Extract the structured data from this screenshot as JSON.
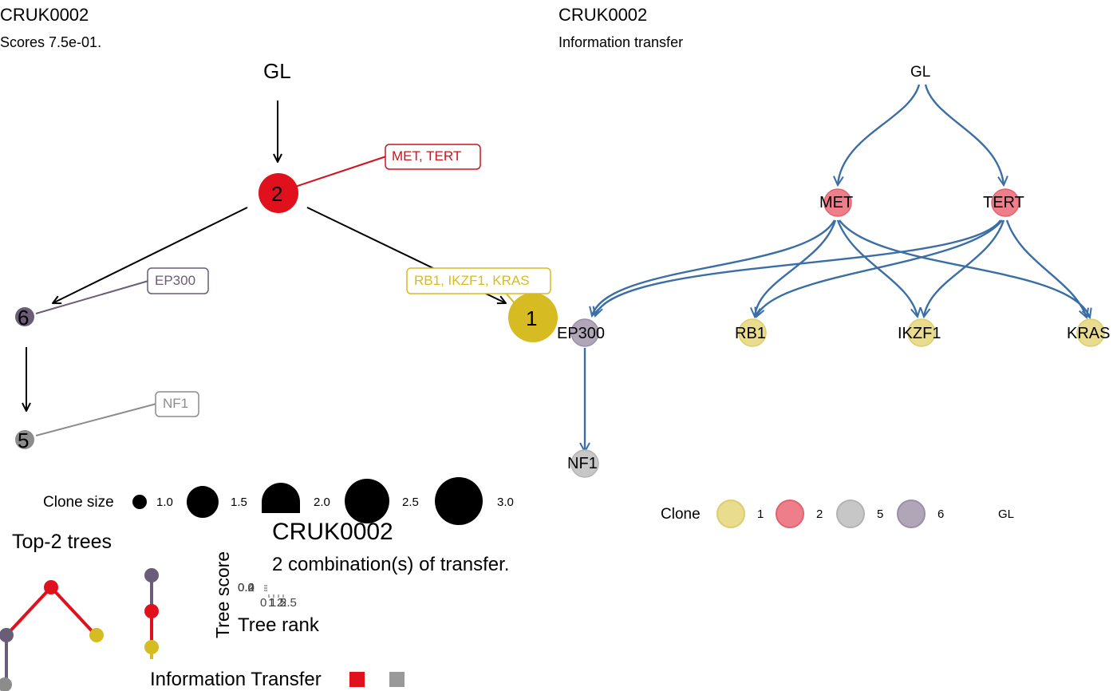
{
  "left_panel": {
    "title": "CRUK0002",
    "subtitle": "Scores 7.5e-01.",
    "root_label": "GL",
    "nodes": [
      {
        "id": "2",
        "color": "#e0111d"
      },
      {
        "id": "1",
        "color": "#d7bb22"
      },
      {
        "id": "6",
        "color": "#6a5d78"
      },
      {
        "id": "5",
        "color": "#8c8c8c"
      }
    ],
    "annotations": [
      {
        "text": "MET, TERT",
        "color": "#d0121d"
      },
      {
        "text": "RB1, IKZF1, KRAS",
        "color": "#d7bb22"
      },
      {
        "text": "EP300",
        "color": "#6a5d78"
      },
      {
        "text": "NF1",
        "color": "#8c8c8c"
      }
    ],
    "legend": {
      "title": "Clone size",
      "items": [
        "1.0",
        "1.5",
        "2.0",
        "2.5",
        "3.0"
      ]
    }
  },
  "right_panel": {
    "title": "CRUK0002",
    "subtitle": "Information transfer",
    "edge_color": "#3a6ea5",
    "nodes": {
      "gl": "GL",
      "met": "MET",
      "tert": "TERT",
      "ep300": "EP300",
      "rb1": "RB1",
      "ikzf1": "IKZF1",
      "kras": "KRAS",
      "nf1": "NF1"
    },
    "legend": {
      "title": "Clone",
      "items": [
        {
          "label": "1",
          "color": "#e9dc8f"
        },
        {
          "label": "2",
          "color": "#ee7f8a"
        },
        {
          "label": "5",
          "color": "#c7c7c7"
        },
        {
          "label": "6",
          "color": "#b0a6b8"
        },
        {
          "label": "GL",
          "color": ""
        }
      ]
    }
  },
  "bottom_left": {
    "title": "Top-2 trees"
  },
  "bottom_center": {
    "title": "CRUK0002",
    "subtitle": "2 combination(s) of transfer.",
    "y_axis_label": "Tree score",
    "x_axis_label": "Tree rank",
    "y_ticks": [
      "0.4",
      "0.2",
      "0.0"
    ],
    "x_ticks": [
      "0",
      "1",
      "1.5",
      "2",
      "2.5"
    ],
    "legend_title": "Information Transfer",
    "legend_colors": [
      "#e0111d",
      "#999999"
    ]
  }
}
